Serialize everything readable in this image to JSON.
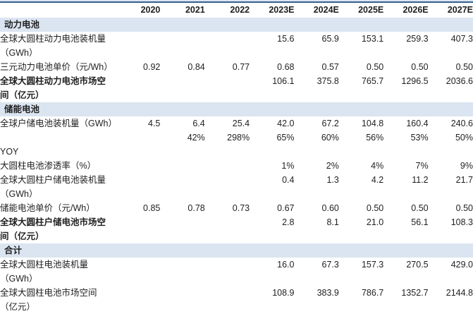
{
  "meta": {
    "band_color": "#dbe5f1",
    "top_rule_color": "#36608f",
    "text_color": "#1f1f1f"
  },
  "table": {
    "columns": [
      "",
      "2020",
      "2021",
      "2022",
      "2023E",
      "2024E",
      "2025E",
      "2026E",
      "2027E"
    ],
    "rows": [
      {
        "type": "section",
        "label": "动力电池"
      },
      {
        "type": "data",
        "label": "全球大圆柱动力电池装机量",
        "label2": "（GWh）",
        "bold": false,
        "values": [
          "",
          "",
          "",
          "15.6",
          "65.9",
          "153.1",
          "259.3",
          "407.3"
        ]
      },
      {
        "type": "data",
        "label": "三元动力电池单价（元/Wh）",
        "label2": "",
        "bold": false,
        "values": [
          "0.92",
          "0.84",
          "0.77",
          "0.68",
          "0.57",
          "0.50",
          "0.50",
          "0.50"
        ]
      },
      {
        "type": "data",
        "label": "全球大圆柱动力电池市场空",
        "label2": "间（亿元）",
        "bold": true,
        "values": [
          "",
          "",
          "",
          "106.1",
          "375.8",
          "765.7",
          "1296.5",
          "2036.6"
        ]
      },
      {
        "type": "section",
        "label": "储能电池"
      },
      {
        "type": "data",
        "label": "全球户储电池装机量（GWh）",
        "label2": "",
        "bold": false,
        "values": [
          "4.5",
          "6.4",
          "25.4",
          "42.0",
          "67.2",
          "104.8",
          "160.4",
          "240.6"
        ]
      },
      {
        "type": "data",
        "label": "",
        "label2": "",
        "bold": false,
        "values": [
          "",
          "42%",
          "298%",
          "65%",
          "60%",
          "56%",
          "53%",
          "50%"
        ]
      },
      {
        "type": "data",
        "label": "YOY",
        "label2": "",
        "bold": false,
        "values": [
          "",
          "",
          "",
          "",
          "",
          "",
          "",
          ""
        ]
      },
      {
        "type": "data",
        "label": "大圆柱电池渗透率（%）",
        "label2": "",
        "bold": false,
        "values": [
          "",
          "",
          "",
          "1%",
          "2%",
          "4%",
          "7%",
          "9%"
        ]
      },
      {
        "type": "data",
        "label": "全球大圆柱户储电池装机量",
        "label2": "（GWh）",
        "bold": false,
        "values": [
          "",
          "",
          "",
          "0.4",
          "1.3",
          "4.2",
          "11.2",
          "21.7"
        ]
      },
      {
        "type": "data",
        "label": "储能电池单价（元/Wh）",
        "label2": "",
        "bold": false,
        "values": [
          "0.85",
          "0.78",
          "0.73",
          "0.67",
          "0.60",
          "0.50",
          "0.50",
          "0.50"
        ]
      },
      {
        "type": "data",
        "label": "全球大圆柱户储电池市场空",
        "label2": "间（亿元）",
        "bold": true,
        "values": [
          "",
          "",
          "",
          "2.8",
          "8.1",
          "21.0",
          "56.1",
          "108.3"
        ]
      },
      {
        "type": "section",
        "label": "合计"
      },
      {
        "type": "data",
        "label": "全球大圆柱电池装机量",
        "label2": "（GWh）",
        "bold": false,
        "values": [
          "",
          "",
          "",
          "16.0",
          "67.3",
          "157.3",
          "270.5",
          "429.0"
        ]
      },
      {
        "type": "data",
        "label": "全球大圆柱电池市场空间",
        "label2": "（亿元）",
        "bold": false,
        "values": [
          "",
          "",
          "",
          "108.9",
          "383.9",
          "786.7",
          "1352.7",
          "2144.8"
        ]
      }
    ]
  }
}
